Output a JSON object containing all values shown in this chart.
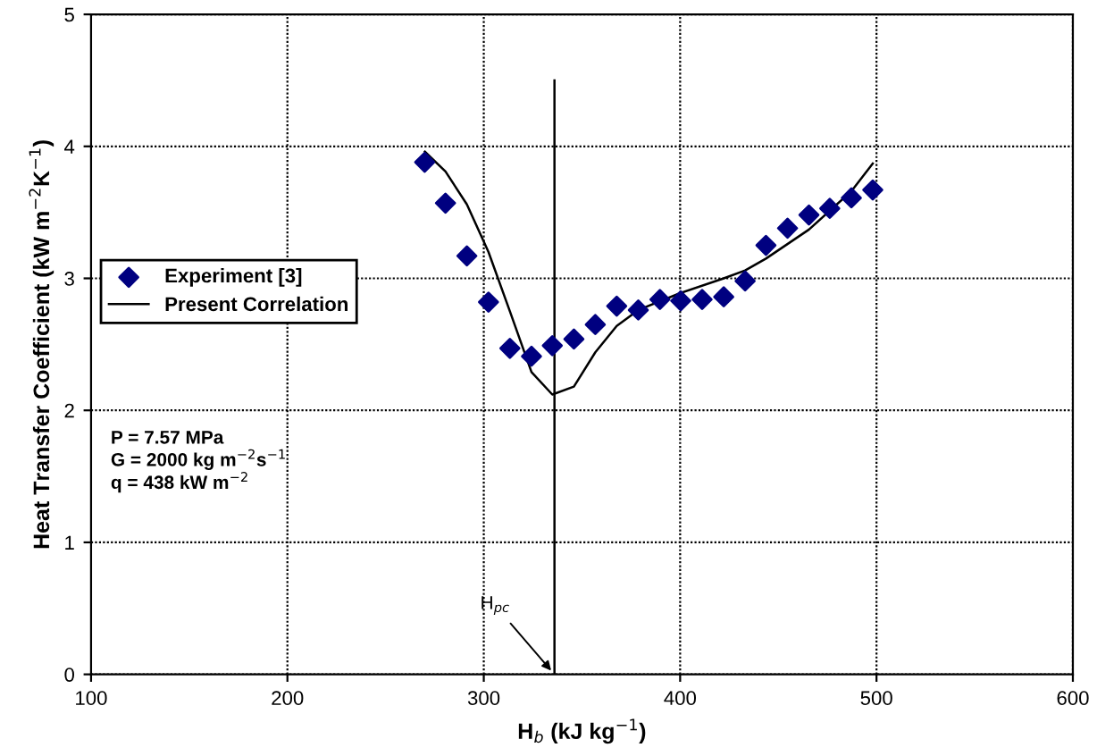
{
  "chart_data": {
    "type": "scatter",
    "xlabel": "H$_{b}$ (kJ kg$^{−1}$)",
    "ylabel": "Heat Transfer Coefficient (kW m$^{−2}$K$^{−1}$)",
    "xlim": [
      100,
      600
    ],
    "xticks": [
      100,
      200,
      300,
      400,
      500,
      600
    ],
    "ylim": [
      0,
      5
    ],
    "yticks": [
      0,
      1,
      2,
      3,
      4,
      5
    ],
    "grid": true,
    "legend": "left",
    "series": [
      {
        "name": "Experiment [3]",
        "color": "#000080",
        "marker": "diamond",
        "x": [
          269.9,
          280.5,
          291.4,
          302.4,
          313.3,
          324.3,
          334.9,
          345.9,
          356.8,
          367.7,
          378.7,
          389.7,
          400.3,
          411.2,
          422.2,
          433.1,
          443.7,
          454.7,
          465.6,
          476.2,
          487.2,
          498.1
        ],
        "values": [
          3.88,
          3.57,
          3.17,
          2.82,
          2.47,
          2.41,
          2.49,
          2.54,
          2.65,
          2.79,
          2.76,
          2.84,
          2.83,
          2.84,
          2.86,
          2.98,
          3.25,
          3.38,
          3.48,
          3.53,
          3.61,
          3.67
        ]
      },
      {
        "name": "Present Correlation",
        "type": "line",
        "color": "#000000",
        "marker": "none",
        "line_style": "solid",
        "x": [
          270,
          280.5,
          291.4,
          302.4,
          313.3,
          324.3,
          334.9,
          345.9,
          356.8,
          367.7,
          378.7,
          400.3,
          422.2,
          433.1,
          443.7,
          465.6,
          487.2,
          498.1
        ],
        "values": [
          3.96,
          3.81,
          3.56,
          3.2,
          2.75,
          2.29,
          2.12,
          2.18,
          2.44,
          2.64,
          2.76,
          2.89,
          3.0,
          3.06,
          3.15,
          3.37,
          3.66,
          3.87
        ]
      }
    ],
    "ref_lines": [
      {
        "axis": "x",
        "value": 336,
        "color": "#000000"
      }
    ],
    "annotations": [
      {
        "text": "H$_{pc}$",
        "x": 336,
        "y": 0
      },
      "P = 7.57 MPa\nG = 2000 kg m$^{−2}$s$^{−1}$\nq = 438 kW m$^{−2}$"
    ]
  }
}
